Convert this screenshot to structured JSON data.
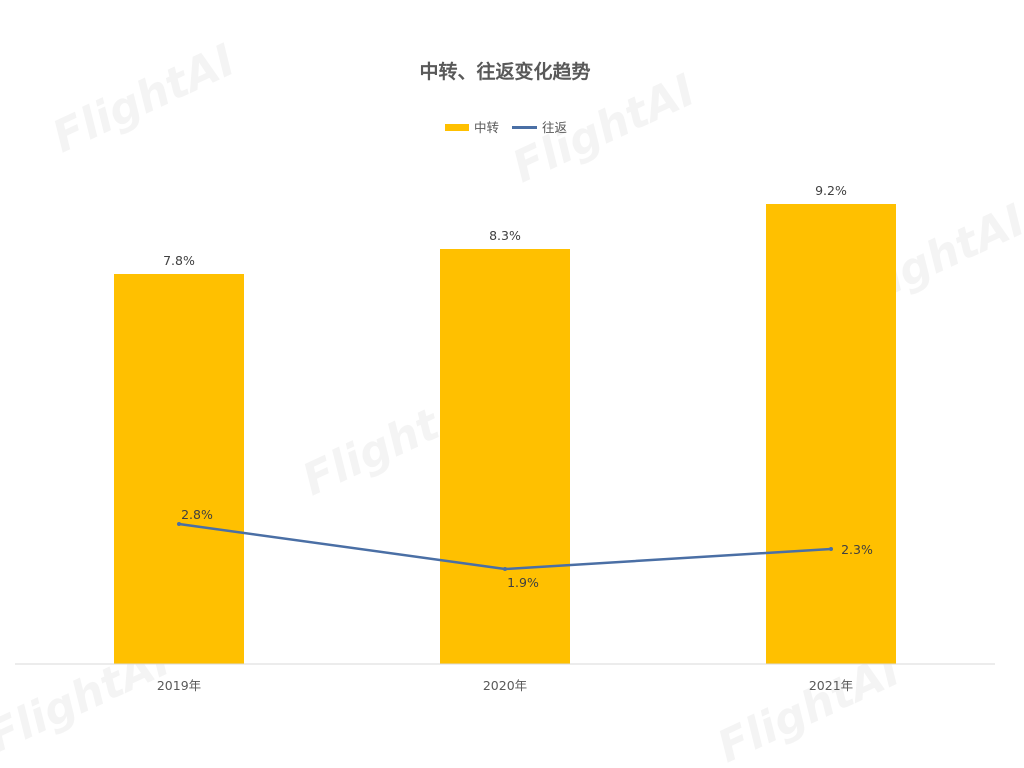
{
  "watermark_text": "FlightAI",
  "chart_data": {
    "type": "bar",
    "title": "中转、往返变化趋势",
    "xlabel": "",
    "ylabel": "",
    "categories": [
      "2019年",
      "2020年",
      "2021年"
    ],
    "ylim": [
      0,
      10
    ],
    "grid": false,
    "legend_position": "top",
    "series": [
      {
        "name": "中转",
        "type": "bar",
        "color": "#FFC000",
        "values": [
          7.8,
          8.3,
          9.2
        ],
        "labels": [
          "7.8%",
          "8.3%",
          "9.2%"
        ]
      },
      {
        "name": "往返",
        "type": "line",
        "color": "#4A6FA5",
        "values": [
          2.8,
          1.9,
          2.3
        ],
        "labels": [
          "2.8%",
          "1.9%",
          "2.3%"
        ]
      }
    ]
  }
}
